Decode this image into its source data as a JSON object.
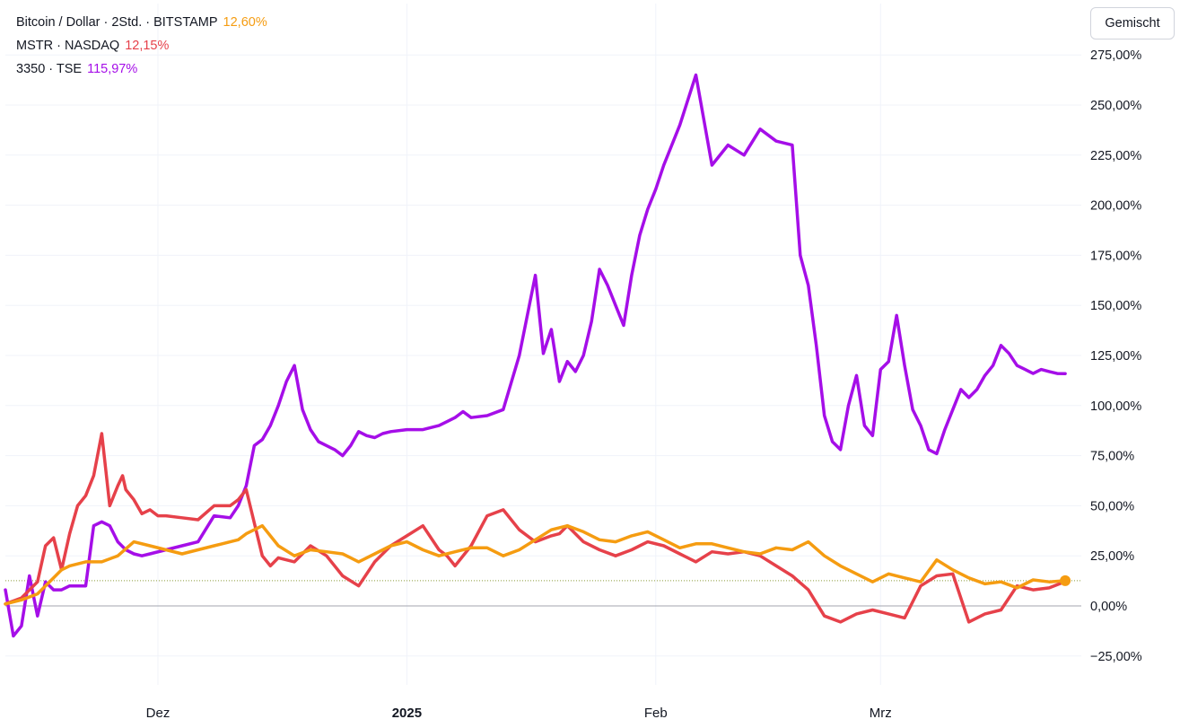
{
  "legend": [
    {
      "label": "Bitcoin / Dollar · 2Std. · BITSTAMP",
      "value": "12,60%",
      "color": "#f59c11"
    },
    {
      "label": "MSTR · NASDAQ",
      "value": "12,15%",
      "color": "#e6414a"
    },
    {
      "label": "3350 · TSE",
      "value": "115,97%",
      "color": "#a50ee8"
    }
  ],
  "mode_button": "Gemischt",
  "chart_data": {
    "type": "line",
    "xlabel": "",
    "ylabel": "",
    "x_ticks": [
      "Dez",
      "2025",
      "Feb",
      "Mrz"
    ],
    "x_tick_days": [
      19,
      50,
      81,
      109
    ],
    "x_range_days": [
      0,
      134
    ],
    "y_ticks": [
      "275,00%",
      "250,00%",
      "225,00%",
      "200,00%",
      "175,00%",
      "150,00%",
      "125,00%",
      "100,00%",
      "75,00%",
      "50,00%",
      "25,00%",
      "0,00%",
      "−25,00%"
    ],
    "ylim": [
      -32,
      282
    ],
    "grid": true,
    "reference_line": 12.6,
    "series": [
      {
        "name": "Bitcoin / Dollar · 2Std. · BITSTAMP",
        "color": "#f59c11",
        "x": [
          0,
          2,
          4,
          6,
          7,
          8,
          10,
          12,
          14,
          16,
          18,
          20,
          22,
          24,
          26,
          27,
          28,
          29,
          30,
          32,
          34,
          36,
          38,
          40,
          42,
          43,
          44,
          46,
          48,
          50,
          52,
          54,
          56,
          58,
          60,
          62,
          64,
          66,
          68,
          70,
          72,
          74,
          76,
          78,
          80,
          82,
          84,
          86,
          88,
          90,
          92,
          94,
          96,
          98,
          100,
          102,
          104,
          106,
          108,
          110,
          112,
          114,
          116,
          118,
          120,
          122,
          124,
          126,
          128,
          130,
          132
        ],
        "y": [
          1,
          3,
          6,
          14,
          18,
          20,
          22,
          22,
          25,
          32,
          30,
          28,
          26,
          28,
          30,
          31,
          32,
          33,
          36,
          40,
          30,
          25,
          28,
          27,
          26,
          24,
          22,
          26,
          30,
          32,
          28,
          25,
          27,
          29,
          29,
          25,
          28,
          33,
          38,
          40,
          37,
          33,
          32,
          35,
          37,
          33,
          29,
          31,
          31,
          29,
          27,
          26,
          29,
          28,
          32,
          25,
          20,
          16,
          12,
          16,
          14,
          12,
          23,
          18,
          14,
          11,
          12,
          9,
          13,
          12,
          12.6
        ]
      },
      {
        "name": "MSTR · NASDAQ",
        "color": "#e6414a",
        "x": [
          0,
          2,
          4,
          5,
          6,
          7,
          8,
          9,
          10,
          11,
          12,
          13,
          14,
          14.6,
          15,
          16,
          17,
          18,
          19,
          20,
          22,
          24,
          26,
          28,
          29,
          30,
          32,
          33,
          34,
          36,
          38,
          40,
          42,
          44,
          46,
          48,
          50,
          52,
          54,
          55,
          56,
          58,
          60,
          62,
          64,
          66,
          68,
          69,
          70,
          72,
          74,
          76,
          78,
          80,
          82,
          84,
          86,
          88,
          90,
          92,
          94,
          96,
          98,
          100,
          102,
          104,
          106,
          108,
          110,
          112,
          114,
          116,
          118,
          120,
          122,
          124,
          126,
          128,
          130,
          132
        ],
        "y": [
          1,
          4,
          12,
          30,
          34,
          18,
          36,
          50,
          55,
          65,
          86,
          50,
          60,
          65,
          58,
          53,
          46,
          48,
          45,
          45,
          44,
          43,
          50,
          50,
          53,
          58,
          25,
          20,
          24,
          22,
          30,
          25,
          15,
          10,
          22,
          30,
          35,
          40,
          28,
          25,
          20,
          30,
          45,
          48,
          38,
          32,
          35,
          36,
          40,
          32,
          28,
          25,
          28,
          32,
          30,
          26,
          22,
          27,
          26,
          27,
          25,
          20,
          15,
          8,
          -5,
          -8,
          -4,
          -2,
          -4,
          -6,
          10,
          15,
          16,
          -8,
          -4,
          -2,
          10,
          8,
          9,
          12.15
        ]
      },
      {
        "name": "3350 · TSE",
        "color": "#a50ee8",
        "x": [
          0,
          1,
          2,
          3,
          4,
          5,
          6,
          7,
          8,
          9,
          10,
          11,
          12,
          13,
          14,
          15,
          16,
          17,
          18,
          20,
          22,
          24,
          26,
          28,
          29,
          30,
          31,
          32,
          33,
          34,
          35,
          36,
          37,
          38,
          39,
          40,
          41,
          42,
          43,
          44,
          45,
          46,
          47,
          48,
          50,
          52,
          54,
          55,
          56,
          57,
          58,
          60,
          62,
          64,
          66,
          67,
          68,
          69,
          70,
          71,
          72,
          73,
          74,
          75,
          76,
          77,
          78,
          79,
          80,
          81,
          82,
          84,
          86,
          88,
          90,
          92,
          94,
          96,
          98,
          99,
          100,
          101,
          102,
          103,
          104,
          105,
          106,
          107,
          108,
          109,
          110,
          111,
          112,
          113,
          114,
          115,
          116,
          117,
          118,
          119,
          120,
          121,
          122,
          123,
          124,
          125,
          126,
          127,
          128,
          129,
          130,
          131,
          132
        ],
        "y": [
          8,
          -15,
          -10,
          15,
          -5,
          12,
          8,
          8,
          10,
          10,
          10,
          40,
          42,
          40,
          32,
          28,
          26,
          25,
          26,
          28,
          30,
          32,
          45,
          44,
          50,
          60,
          80,
          83,
          90,
          100,
          112,
          120,
          98,
          88,
          82,
          80,
          78,
          75,
          80,
          87,
          85,
          84,
          86,
          87,
          88,
          88,
          90,
          92,
          94,
          97,
          94,
          95,
          98,
          125,
          165,
          126,
          138,
          112,
          122,
          117,
          125,
          142,
          168,
          160,
          150,
          140,
          165,
          185,
          198,
          208,
          220,
          240,
          265,
          220,
          230,
          225,
          238,
          232,
          230,
          175,
          160,
          130,
          95,
          82,
          78,
          100,
          115,
          90,
          85,
          118,
          122,
          145,
          120,
          98,
          90,
          78,
          76,
          88,
          98,
          108,
          104,
          108,
          115,
          120,
          130,
          126,
          120,
          118,
          116,
          118,
          117,
          116,
          115.97
        ]
      }
    ]
  }
}
